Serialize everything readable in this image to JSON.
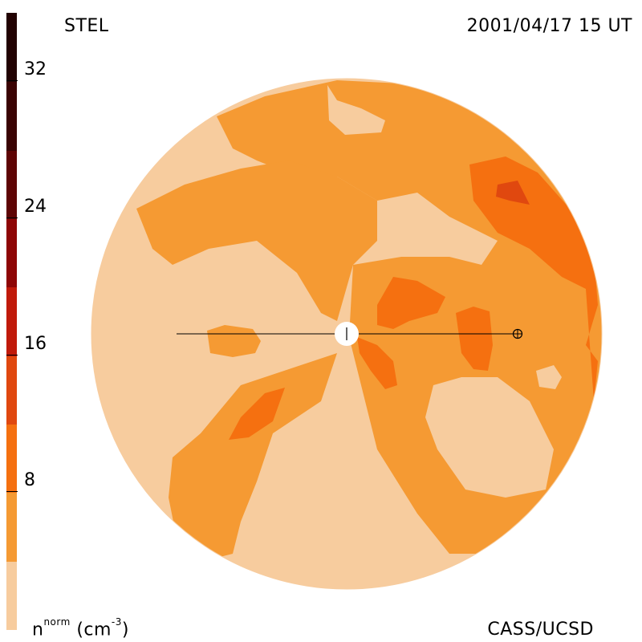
{
  "header": {
    "left_title": "STEL",
    "right_title": "2001/04/17 15 UT"
  },
  "footer": {
    "unit_base": "n",
    "unit_sup": "norm",
    "unit_rest": "(cm",
    "unit_exp": "-3",
    "unit_close": ")",
    "credit": "CASS/UCSD"
  },
  "colorbar": {
    "levels": [
      {
        "from": 0,
        "to": 4,
        "color": "#f7cc9e"
      },
      {
        "from": 4,
        "to": 8,
        "color": "#f59a33"
      },
      {
        "from": 8,
        "to": 12,
        "color": "#f57010"
      },
      {
        "from": 12,
        "to": 16,
        "color": "#e0480f"
      },
      {
        "from": 16,
        "to": 20,
        "color": "#c01a0a"
      },
      {
        "from": 20,
        "to": 24,
        "color": "#8e0606"
      },
      {
        "from": 24,
        "to": 28,
        "color": "#5e0404"
      },
      {
        "from": 28,
        "to": 32,
        "color": "#3a0303"
      },
      {
        "from": 32,
        "to": 36,
        "color": "#220202"
      }
    ],
    "ticks": [
      "8",
      "16",
      "24",
      "32"
    ]
  },
  "markers": {
    "sun_symbol": "sun-disk",
    "earth_symbol": "earth-circled-plus"
  }
}
